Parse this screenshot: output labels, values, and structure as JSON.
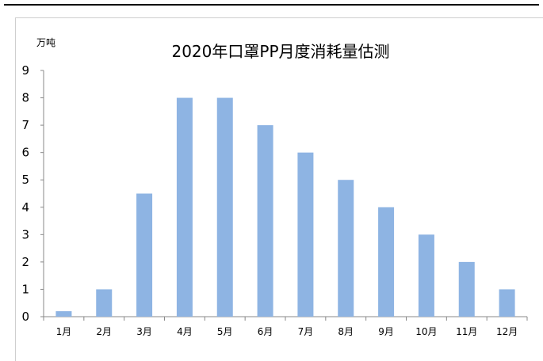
{
  "chart_data": {
    "type": "bar",
    "title": "2020年口罩PP月度消耗量估测",
    "unit_label": "万吨",
    "categories": [
      "1月",
      "2月",
      "3月",
      "4月",
      "5月",
      "6月",
      "7月",
      "8月",
      "9月",
      "10月",
      "11月",
      "12月"
    ],
    "values": [
      0.2,
      1,
      4.5,
      8,
      8,
      7,
      6,
      5,
      4,
      3,
      2,
      1
    ],
    "y_ticks": [
      "0",
      "1",
      "2",
      "3",
      "4",
      "5",
      "6",
      "7",
      "8",
      "9"
    ],
    "ylim": [
      0,
      9
    ],
    "grid": false,
    "bar_color": "#8eb4e3"
  }
}
